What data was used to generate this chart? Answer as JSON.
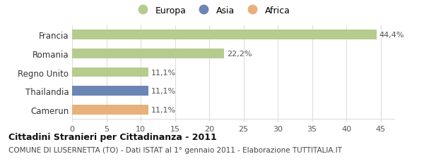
{
  "categories": [
    "Francia",
    "Romania",
    "Regno Unito",
    "Thailandia",
    "Camerun"
  ],
  "values": [
    44.4,
    22.2,
    11.1,
    11.1,
    11.1
  ],
  "labels": [
    "44,4%",
    "22,2%",
    "11,1%",
    "11,1%",
    "11,1%"
  ],
  "colors": [
    "#b5cc8e",
    "#b5cc8e",
    "#b5cc8e",
    "#6b85b5",
    "#e8b07a"
  ],
  "legend": [
    {
      "label": "Europa",
      "color": "#b5cc8e"
    },
    {
      "label": "Asia",
      "color": "#6b85b5"
    },
    {
      "label": "Africa",
      "color": "#e8b07a"
    }
  ],
  "xlim": [
    0,
    47
  ],
  "xticks": [
    0,
    5,
    10,
    15,
    20,
    25,
    30,
    35,
    40,
    45
  ],
  "title_bold": "Cittadini Stranieri per Cittadinanza - 2011",
  "subtitle": "COMUNE DI LUSERNETTA (TO) - Dati ISTAT al 1° gennaio 2011 - Elaborazione TUTTITALIA.IT",
  "background_color": "#ffffff",
  "grid_color": "#dddddd",
  "bar_height": 0.52
}
